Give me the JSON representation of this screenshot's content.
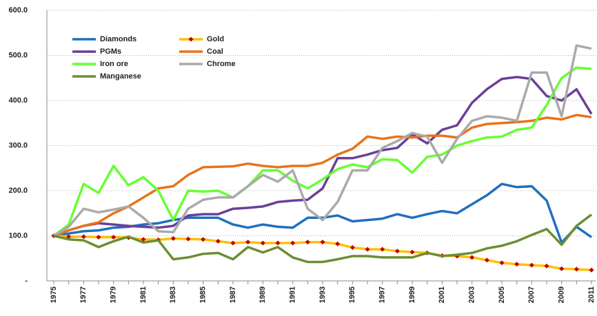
{
  "chart_data": {
    "type": "line",
    "categories": [
      "1975",
      null,
      "1977",
      null,
      "1979",
      null,
      "1981",
      null,
      "1983",
      null,
      "1985",
      null,
      "1987",
      null,
      "1989",
      null,
      "1991",
      null,
      "1993",
      null,
      "1995",
      null,
      "1997",
      null,
      "1999",
      null,
      "2001",
      null,
      "2003",
      null,
      "2005",
      null,
      "2007",
      null,
      "2009",
      null,
      "2011"
    ],
    "ylim": [
      0,
      600
    ],
    "yticks": [
      {
        "value": 0,
        "label": "-"
      },
      {
        "value": 100,
        "label": "100.0"
      },
      {
        "value": 200,
        "label": "200.0"
      },
      {
        "value": 300,
        "label": "300.0"
      },
      {
        "value": 400,
        "label": "400.0"
      },
      {
        "value": 500,
        "label": "500.0"
      },
      {
        "value": 600,
        "label": "600.0"
      }
    ],
    "grid": true,
    "legend": "upper left",
    "series": [
      {
        "name": "Diamonds",
        "color": "#1f6fc0",
        "values": [
          100,
          105,
          110,
          112,
          118,
          120,
          125,
          128,
          135,
          140,
          140,
          140,
          125,
          118,
          125,
          120,
          118,
          140,
          140,
          145,
          132,
          135,
          138,
          148,
          140,
          148,
          155,
          150,
          170,
          190,
          215,
          208,
          210,
          178,
          85,
          120,
          97
        ]
      },
      {
        "name": "Gold",
        "color": "#ffc000",
        "marker": "diamond",
        "marker_color": "#c00000",
        "values": [
          100,
          98,
          98,
          97,
          97,
          96,
          92,
          91,
          94,
          93,
          92,
          88,
          84,
          86,
          84,
          84,
          84,
          86,
          86,
          82,
          74,
          70,
          70,
          66,
          64,
          62,
          56,
          55,
          52,
          46,
          40,
          37,
          35,
          33,
          27,
          26,
          24
        ]
      },
      {
        "name": "PGMs",
        "color": "#6a3f99",
        "values": [
          100,
          112,
          122,
          128,
          125,
          122,
          120,
          118,
          122,
          145,
          148,
          148,
          160,
          162,
          165,
          175,
          178,
          180,
          205,
          272,
          272,
          280,
          290,
          295,
          325,
          305,
          335,
          345,
          395,
          425,
          448,
          452,
          448,
          410,
          400,
          425,
          370
        ]
      },
      {
        "name": "Coal",
        "color": "#e8731a",
        "values": [
          100,
          112,
          122,
          130,
          150,
          165,
          185,
          205,
          210,
          235,
          252,
          253,
          254,
          260,
          255,
          252,
          255,
          255,
          262,
          280,
          293,
          320,
          315,
          320,
          318,
          322,
          322,
          318,
          340,
          348,
          350,
          352,
          355,
          362,
          358,
          368,
          363
        ]
      },
      {
        "name": "Iron ore",
        "color": "#66ff33",
        "values": [
          100,
          125,
          215,
          195,
          255,
          212,
          230,
          200,
          135,
          200,
          198,
          200,
          185,
          210,
          245,
          245,
          222,
          205,
          225,
          248,
          258,
          252,
          270,
          268,
          240,
          275,
          280,
          300,
          310,
          318,
          320,
          335,
          340,
          390,
          450,
          473,
          470
        ]
      },
      {
        "name": "Chrome",
        "color": "#aaaaaa",
        "values": [
          100,
          120,
          160,
          152,
          158,
          165,
          140,
          110,
          108,
          160,
          180,
          185,
          185,
          210,
          235,
          220,
          245,
          160,
          135,
          175,
          245,
          245,
          295,
          310,
          328,
          320,
          262,
          315,
          355,
          365,
          362,
          355,
          462,
          462,
          365,
          522,
          515
        ]
      },
      {
        "name": "Manganese",
        "color": "#6b8e32",
        "values": [
          100,
          92,
          90,
          75,
          88,
          98,
          85,
          90,
          48,
          52,
          60,
          62,
          48,
          75,
          63,
          75,
          52,
          42,
          42,
          48,
          55,
          55,
          52,
          52,
          52,
          62,
          55,
          58,
          62,
          72,
          78,
          88,
          102,
          115,
          80,
          122,
          147
        ]
      }
    ]
  }
}
